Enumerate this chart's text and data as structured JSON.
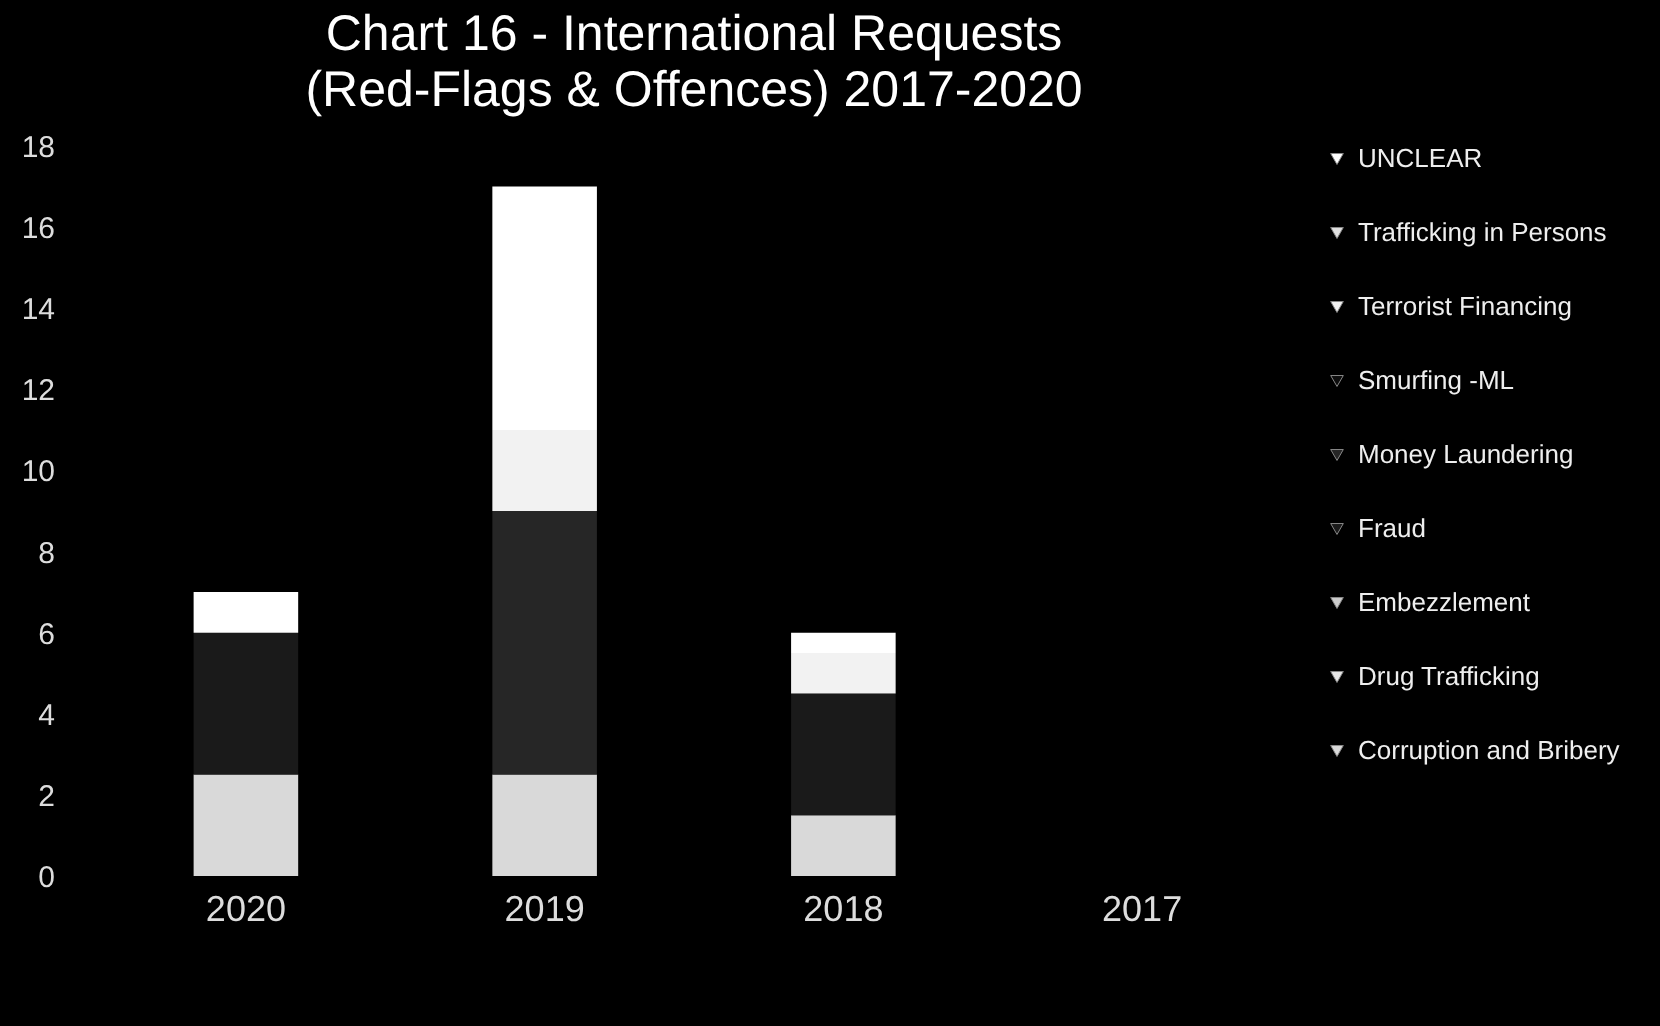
{
  "chart_data": {
    "type": "bar",
    "title": "Chart 16 - International Requests (Red-Flags & Offences) 2017-2020",
    "categories": [
      "2020",
      "2019",
      "2018",
      "2017"
    ],
    "stacked": true,
    "series": [
      {
        "name": "Corruption and Bribery",
        "color": "#d9d9d9",
        "values": [
          2.5,
          2.5,
          1.5,
          null
        ]
      },
      {
        "name": "Drug Trafficking",
        "color": "#e6e6e6",
        "values": [
          0,
          0,
          0,
          null
        ]
      },
      {
        "name": "Embezzlement",
        "color": "#cccccc",
        "values": [
          0,
          0,
          0,
          null
        ]
      },
      {
        "name": "Fraud",
        "color": "#1a1a1a",
        "values": [
          3.5,
          0,
          3,
          null
        ]
      },
      {
        "name": "Money Laundering",
        "color": "#262626",
        "values": [
          0,
          6.5,
          0,
          null
        ]
      },
      {
        "name": "Smurfing -ML",
        "color": "#0d0d0d",
        "values": [
          0,
          0,
          0,
          null
        ]
      },
      {
        "name": "Terrorist Financing",
        "color": "#f2f2f2",
        "values": [
          0,
          2,
          1,
          null
        ]
      },
      {
        "name": "Trafficking in Persons",
        "color": "#e0e0e0",
        "values": [
          0,
          0,
          0,
          null
        ]
      },
      {
        "name": "UNCLEAR",
        "color": "#ffffff",
        "values": [
          1,
          6,
          0.5,
          null
        ]
      }
    ],
    "ylim": [
      0,
      18
    ],
    "yticks": [
      0,
      2,
      4,
      6,
      8,
      10,
      12,
      14,
      16,
      18
    ],
    "legend": "right"
  }
}
